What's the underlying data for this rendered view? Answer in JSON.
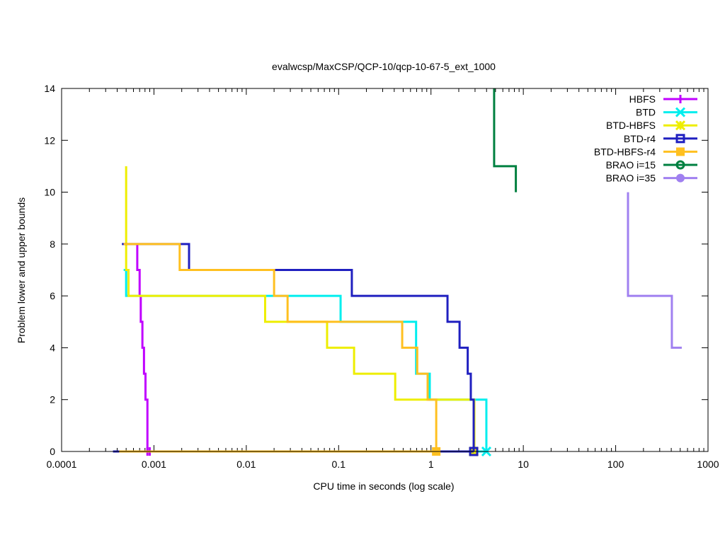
{
  "chart_data": {
    "type": "line",
    "title": "evalwcsp/MaxCSP/QCP-10/qcp-10-67-5_ext_1000",
    "xlabel": "CPU time in seconds (log scale)",
    "ylabel": "Problem lower and upper bounds",
    "xscale": "log",
    "xlim": [
      0.0001,
      1000
    ],
    "ylim": [
      0,
      14
    ],
    "xticks": [
      {
        "value": 0.0001,
        "label": "0.0001"
      },
      {
        "value": 0.001,
        "label": "0.001"
      },
      {
        "value": 0.01,
        "label": "0.01"
      },
      {
        "value": 0.1,
        "label": "0.1"
      },
      {
        "value": 1,
        "label": "1"
      },
      {
        "value": 10,
        "label": "10"
      },
      {
        "value": 100,
        "label": "100"
      },
      {
        "value": 1000,
        "label": "1000"
      }
    ],
    "yticks": [
      {
        "value": 0,
        "label": "0"
      },
      {
        "value": 2,
        "label": "2"
      },
      {
        "value": 4,
        "label": "4"
      },
      {
        "value": 6,
        "label": "6"
      },
      {
        "value": 8,
        "label": "8"
      },
      {
        "value": 10,
        "label": "10"
      },
      {
        "value": 12,
        "label": "12"
      },
      {
        "value": 14,
        "label": "14"
      }
    ],
    "grid": false,
    "legend_position": "top-right",
    "series": [
      {
        "name": "HBFS",
        "color": "#c000ff",
        "marker": "plus",
        "upper": [
          [
            0.00066,
            8
          ],
          [
            0.00066,
            7
          ],
          [
            0.0007,
            7
          ],
          [
            0.0007,
            6
          ],
          [
            0.00072,
            6
          ],
          [
            0.00072,
            5
          ],
          [
            0.00075,
            5
          ],
          [
            0.00075,
            4
          ],
          [
            0.00078,
            4
          ],
          [
            0.00078,
            3
          ],
          [
            0.00081,
            3
          ],
          [
            0.00081,
            2
          ],
          [
            0.00085,
            2
          ],
          [
            0.00085,
            0
          ]
        ],
        "lower": [
          [
            0.00075,
            0
          ],
          [
            0.0009,
            0
          ]
        ],
        "end": [
          0.00085,
          0.0009
        ]
      },
      {
        "name": "BTD",
        "color": "#00eeee",
        "marker": "cross",
        "upper": [
          [
            0.00047,
            7
          ],
          [
            0.0005,
            7
          ],
          [
            0.0005,
            6
          ],
          [
            0.105,
            6
          ],
          [
            0.105,
            5
          ],
          [
            0.69,
            5
          ],
          [
            0.69,
            3
          ],
          [
            0.97,
            3
          ],
          [
            0.97,
            2
          ],
          [
            3.98,
            2
          ],
          [
            3.98,
            0
          ]
        ],
        "lower": [
          [
            0.00045,
            0
          ],
          [
            3.98,
            0
          ]
        ],
        "end": [
          3.98
        ]
      },
      {
        "name": "BTD-HBFS",
        "color": "#eeee00",
        "marker": "star",
        "upper": [
          [
            0.0005,
            11
          ],
          [
            0.0005,
            7
          ],
          [
            0.00053,
            7
          ],
          [
            0.00053,
            6
          ],
          [
            0.016,
            6
          ],
          [
            0.016,
            5
          ],
          [
            0.075,
            5
          ],
          [
            0.075,
            4
          ],
          [
            0.147,
            4
          ],
          [
            0.147,
            3
          ],
          [
            0.41,
            3
          ],
          [
            0.41,
            2
          ],
          [
            2.95,
            2
          ],
          [
            2.95,
            0
          ]
        ],
        "lower": [
          [
            0.00045,
            0
          ],
          [
            2.9,
            0
          ]
        ],
        "end": [
          2.9
        ]
      },
      {
        "name": "BTD-r4",
        "color": "#2020c0",
        "marker": "open-square",
        "upper": [
          [
            0.00045,
            8
          ],
          [
            0.0024,
            8
          ],
          [
            0.0024,
            7
          ],
          [
            0.139,
            7
          ],
          [
            0.139,
            6
          ],
          [
            1.51,
            6
          ],
          [
            1.51,
            5
          ],
          [
            2.04,
            5
          ],
          [
            2.04,
            4
          ],
          [
            2.5,
            4
          ],
          [
            2.5,
            3
          ],
          [
            2.7,
            3
          ],
          [
            2.7,
            2
          ],
          [
            2.9,
            2
          ],
          [
            2.9,
            0
          ]
        ],
        "lower": [
          [
            0.00036,
            0
          ],
          [
            2.9,
            0
          ]
        ],
        "end": [
          2.9
        ]
      },
      {
        "name": "BTD-HBFS-r4",
        "color": "#ffc020",
        "marker": "filled-square",
        "upper": [
          [
            0.00047,
            8
          ],
          [
            0.0019,
            8
          ],
          [
            0.0019,
            7
          ],
          [
            0.02,
            7
          ],
          [
            0.02,
            6
          ],
          [
            0.028,
            6
          ],
          [
            0.028,
            5
          ],
          [
            0.488,
            5
          ],
          [
            0.488,
            4
          ],
          [
            0.71,
            4
          ],
          [
            0.71,
            3
          ],
          [
            0.92,
            3
          ],
          [
            0.92,
            2
          ],
          [
            1.14,
            2
          ],
          [
            1.14,
            0
          ]
        ],
        "lower": [
          [
            0.00042,
            0
          ],
          [
            1.14,
            0
          ]
        ],
        "end": [
          1.14
        ]
      },
      {
        "name": "BRAO i=15",
        "color": "#008040",
        "marker": "open-circle",
        "upper": [
          [
            4.83,
            14
          ],
          [
            4.83,
            11
          ],
          [
            8.3,
            11
          ],
          [
            8.3,
            10
          ]
        ],
        "lower": [],
        "end": []
      },
      {
        "name": "BRAO i=35",
        "color": "#a080f0",
        "marker": "filled-circle",
        "upper": [
          [
            136,
            10
          ],
          [
            136,
            6
          ],
          [
            406,
            6
          ],
          [
            406,
            4
          ],
          [
            520,
            4
          ]
        ],
        "lower": [],
        "end": []
      }
    ]
  }
}
